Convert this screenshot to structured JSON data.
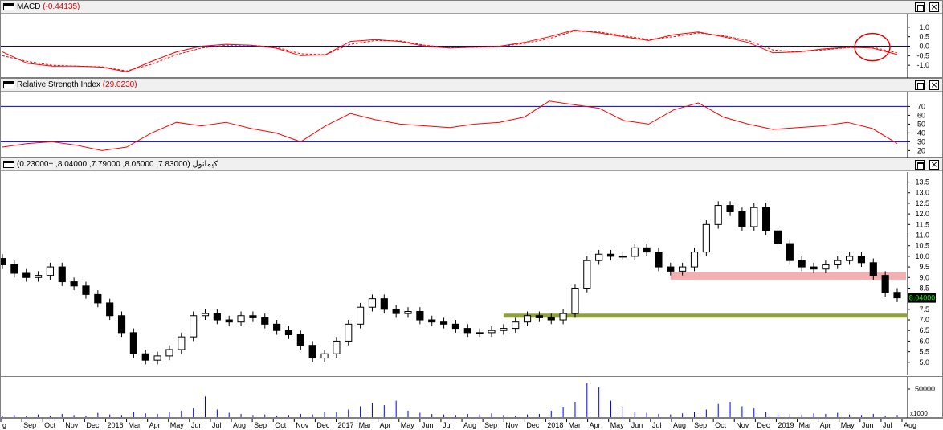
{
  "window": {
    "maximize_icon": "maximize-icon",
    "close_icon": "close-icon",
    "close_glyph": "×"
  },
  "panes": {
    "macd": {
      "name": "MACD",
      "value": "(-0.44135)"
    },
    "rsi": {
      "name": "Relative Strength Index",
      "value": "(29.0230)"
    },
    "price": {
      "name": "كيمانول (7.83000, 8.05000, 7.79000, 8.04000, +0.23000)"
    }
  },
  "chart_data": [
    {
      "type": "line",
      "pane": "MACD",
      "ylim": [
        -1.5,
        1.5
      ],
      "yticks": [
        "1.0",
        "0.5",
        "0.0",
        "-0.5",
        "-1.0"
      ],
      "hlines": [
        0
      ],
      "series": [
        {
          "values": [
            -0.3,
            -0.9,
            -1.05,
            -1.05,
            -1.1,
            -1.35,
            -0.8,
            -0.3,
            0.0,
            0.1,
            0.05,
            -0.1,
            -0.5,
            -0.45,
            0.25,
            0.35,
            0.25,
            0.0,
            -0.1,
            -0.05,
            0.0,
            0.2,
            0.5,
            0.85,
            0.7,
            0.5,
            0.3,
            0.6,
            0.75,
            0.5,
            0.2,
            -0.35,
            -0.3,
            -0.15,
            -0.05,
            -0.1,
            -0.44
          ],
          "color": "#ff0000"
        },
        {
          "values": [
            -0.5,
            -0.8,
            -1.0,
            -1.05,
            -1.08,
            -1.3,
            -0.95,
            -0.45,
            -0.1,
            0.05,
            0.05,
            -0.05,
            -0.4,
            -0.45,
            0.1,
            0.3,
            0.28,
            0.05,
            -0.08,
            -0.06,
            -0.02,
            0.15,
            0.4,
            0.8,
            0.75,
            0.55,
            0.35,
            0.5,
            0.7,
            0.55,
            0.3,
            -0.2,
            -0.3,
            -0.2,
            -0.08,
            -0.05,
            -0.35
          ],
          "color": "#ff0000",
          "dashed": true
        }
      ],
      "annotations": [
        "red circle around latest MACD crossover"
      ]
    },
    {
      "type": "line",
      "pane": "Relative Strength Index",
      "ylim": [
        14,
        84
      ],
      "yticks": [
        "70",
        "60",
        "50",
        "40",
        "30",
        "20"
      ],
      "hlines": [
        70,
        30
      ],
      "series": [
        {
          "values": [
            24,
            28,
            30,
            26,
            20,
            24,
            40,
            52,
            48,
            52,
            45,
            40,
            30,
            48,
            62,
            55,
            50,
            48,
            46,
            50,
            52,
            58,
            76,
            72,
            68,
            54,
            50,
            66,
            74,
            58,
            50,
            44,
            46,
            48,
            52,
            45,
            28
          ],
          "color": "#ff0000"
        }
      ]
    },
    {
      "type": "candlestick",
      "pane": "كيمانول",
      "ylim": [
        4.5,
        13.9
      ],
      "yticks": [
        "13.5",
        "13.0",
        "12.5",
        "12.0",
        "11.5",
        "11.0",
        "10.5",
        "10.0",
        "9.5",
        "9.0",
        "8.5",
        "8.0",
        "7.5",
        "7.0",
        "6.5",
        "6.0",
        "5.5",
        "5.0"
      ],
      "close": [
        9.6,
        9.2,
        9.0,
        9.1,
        9.5,
        8.8,
        8.6,
        8.2,
        7.8,
        7.2,
        6.4,
        5.4,
        5.1,
        5.3,
        5.6,
        6.2,
        7.2,
        7.3,
        7.0,
        6.9,
        7.2,
        7.1,
        6.8,
        6.5,
        6.3,
        5.8,
        5.2,
        5.4,
        6.0,
        6.8,
        7.6,
        8.0,
        7.5,
        7.3,
        7.4,
        7.0,
        6.9,
        6.8,
        6.6,
        6.4,
        6.4,
        6.5,
        6.6,
        6.9,
        7.2,
        7.1,
        7.0,
        7.3,
        8.5,
        9.8,
        10.1,
        10.0,
        10.0,
        10.4,
        10.2,
        9.5,
        9.3,
        9.5,
        10.2,
        11.5,
        12.4,
        12.1,
        11.4,
        12.3,
        11.2,
        10.6,
        9.8,
        9.5,
        9.4,
        9.6,
        9.8,
        10.0,
        9.7,
        9.1,
        8.3,
        8.04
      ],
      "current_price_label": "8.04000",
      "zones": [
        {
          "type": "band",
          "from": 8.9,
          "to": 9.25,
          "color": "#f4b0b0"
        },
        {
          "type": "line",
          "value": 7.2,
          "color": "#8fa03c"
        }
      ]
    },
    {
      "type": "bar",
      "pane": "Volume",
      "ylim": [
        0,
        60000
      ],
      "yticks": [
        "50000"
      ],
      "unit_label": "x1000",
      "values": [
        3,
        4,
        2,
        5,
        3,
        6,
        4,
        3,
        8,
        5,
        4,
        10,
        7,
        6,
        9,
        12,
        16,
        38,
        14,
        8,
        6,
        4,
        5,
        3,
        4,
        6,
        5,
        10,
        9,
        14,
        20,
        26,
        22,
        30,
        12,
        8,
        6,
        5,
        4,
        6,
        5,
        7,
        4,
        3,
        5,
        6,
        12,
        18,
        28,
        62,
        55,
        30,
        18,
        10,
        8,
        6,
        5,
        7,
        9,
        14,
        24,
        28,
        20,
        16,
        10,
        8,
        6,
        5,
        7,
        6,
        8,
        5,
        4,
        6,
        3,
        4
      ],
      "color": "#0000ff"
    }
  ],
  "time_axis": {
    "labels": [
      "g",
      "Sep",
      "Oct",
      "Nov",
      "Dec",
      "2016",
      "Mar",
      "Apr",
      "May",
      "Jun",
      "Jul",
      "Aug",
      "Sep",
      "Oct",
      "Nov",
      "Dec",
      "2017",
      "Mar",
      "Apr",
      "May",
      "Jun",
      "Jul",
      "Aug",
      "Sep",
      "Nov",
      "Dec",
      "2018",
      "Mar",
      "Apr",
      "May",
      "Jun",
      "Jul",
      "Aug",
      "Sep",
      "Oct",
      "Nov",
      "Dec",
      "2019",
      "Mar",
      "Apr",
      "May",
      "Jun",
      "Jul",
      "Aug"
    ]
  }
}
